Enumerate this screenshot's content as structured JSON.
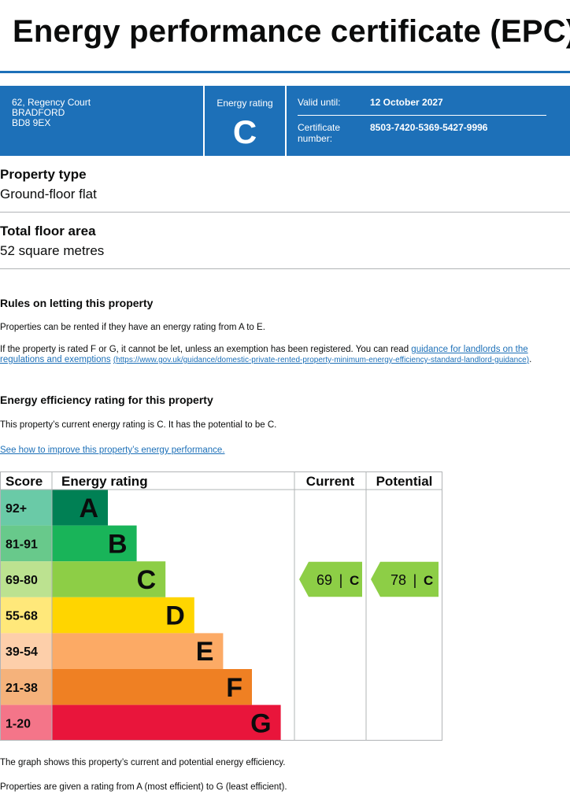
{
  "title": "Energy performance certificate (EPC)",
  "address": [
    "62, Regency Court",
    "BRADFORD",
    "BD8 9EX"
  ],
  "energy_rating": {
    "label": "Energy rating",
    "value": "C"
  },
  "valid_until": {
    "label": "Valid until:",
    "value": "12 October 2027"
  },
  "certificate": {
    "label": "Certificate number:",
    "value": "8503-7420-5369-5427-9996"
  },
  "property_type": {
    "heading": "Property type",
    "value": "Ground-floor flat"
  },
  "floor_area": {
    "heading": "Total floor area",
    "value": "52 square metres"
  },
  "rules": {
    "heading": "Rules on letting this property",
    "para1": "Properties can be rented if they have an energy rating from A to E.",
    "para2_text": "If the property is rated F or G, it cannot be let, unless an exemption has been registered. You can read ",
    "para2_link": "guidance for landlords on the regulations and exemptions",
    "para2_url": "(https://www.gov.uk/guidance/domestic-private-rented-property-minimum-energy-efficiency-standard-landlord-guidance)",
    "para2_end": "."
  },
  "efficiency": {
    "heading": "Energy efficiency rating for this property",
    "text": "This property’s current energy rating is C. It has the potential to be C.",
    "link": "See how to improve this property’s energy performance."
  },
  "chart_data": {
    "type": "table",
    "headers": {
      "score": "Score",
      "rating": "Energy rating",
      "current": "Current",
      "potential": "Potential"
    },
    "bands": [
      {
        "score": "92+",
        "letter": "A",
        "color": "#008054",
        "score_bg": "#6acaa7"
      },
      {
        "score": "81-91",
        "letter": "B",
        "color": "#19b459",
        "score_bg": "#68c98b"
      },
      {
        "score": "69-80",
        "letter": "C",
        "color": "#8dce46",
        "score_bg": "#bce290"
      },
      {
        "score": "55-68",
        "letter": "D",
        "color": "#ffd500",
        "score_bg": "#ffe87a"
      },
      {
        "score": "39-54",
        "letter": "E",
        "color": "#fcaa65",
        "score_bg": "#fdcfaa"
      },
      {
        "score": "21-38",
        "letter": "F",
        "color": "#ef8023",
        "score_bg": "#f5b27b"
      },
      {
        "score": "1-20",
        "letter": "G",
        "color": "#e9153b",
        "score_bg": "#f47589"
      }
    ],
    "current": {
      "value": 69,
      "letter": "C"
    },
    "potential": {
      "value": 78,
      "letter": "C"
    },
    "pointer_color": "#8dce46"
  },
  "footer": {
    "line1": "The graph shows this property’s current and potential energy efficiency.",
    "line2": "Properties are given a rating from A (most efficient) to G (least efficient)."
  }
}
